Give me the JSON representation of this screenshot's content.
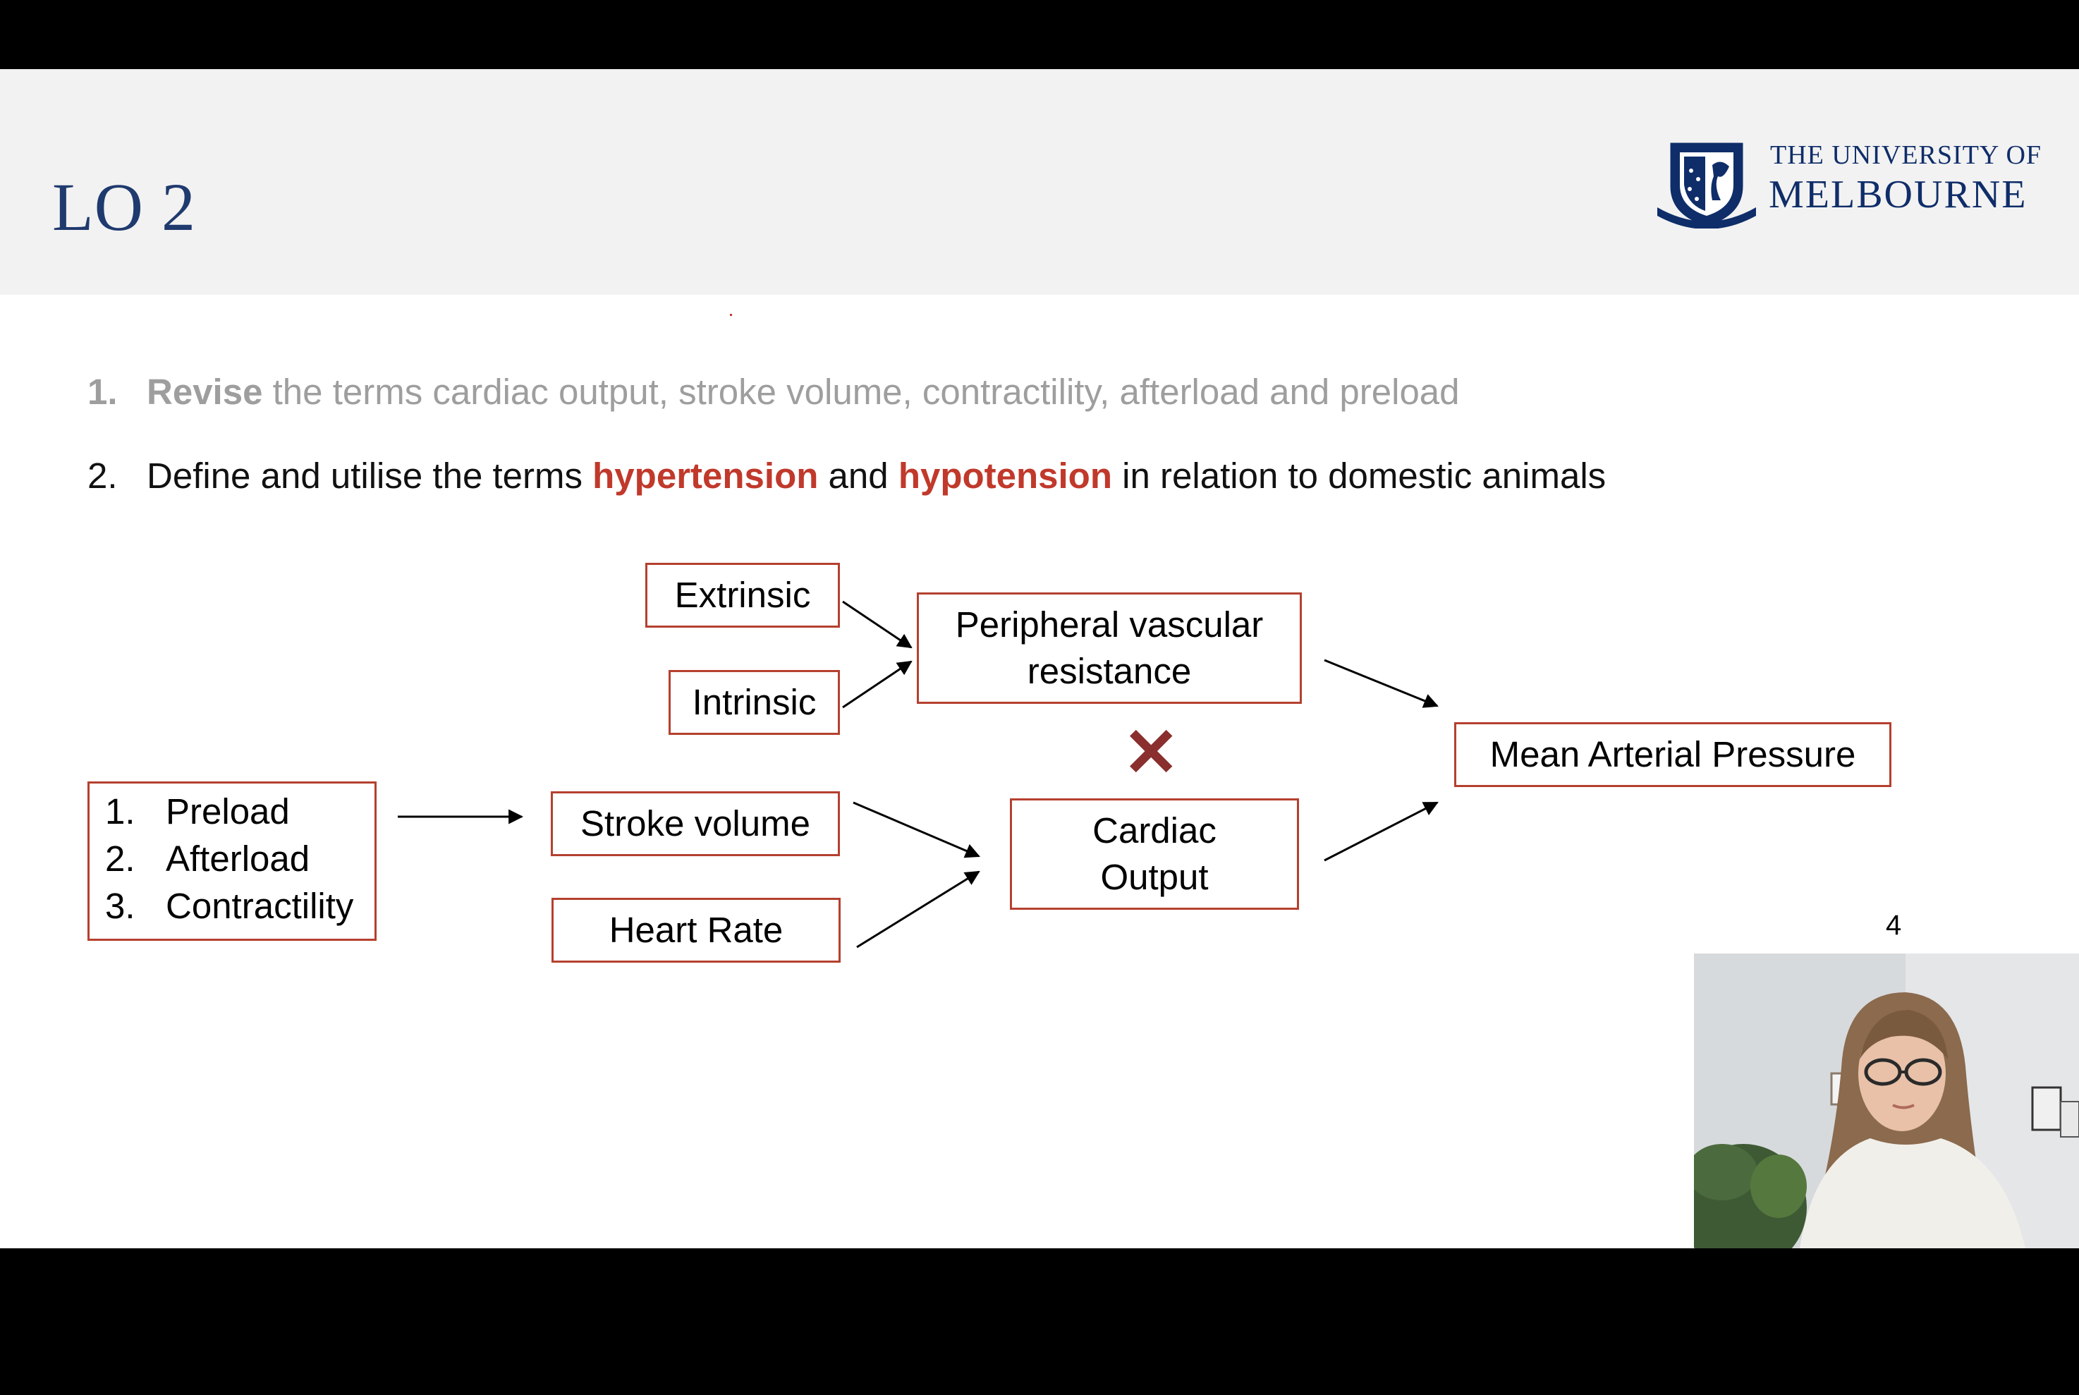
{
  "slide": {
    "title": "LO 2",
    "logo": {
      "line1": "THE UNIVERSITY OF",
      "line2": "MELBOURNE"
    },
    "objectives": [
      {
        "num": "1.",
        "bold": "Revise",
        "text": " the terms cardiac output, stroke volume, contractility, afterload and preload"
      },
      {
        "num": "2.",
        "pre": "Define and utilise the terms ",
        "hl1": "hypertension",
        "mid": " and ",
        "hl2": "hypotension",
        "post": " in relation to domestic animals"
      }
    ],
    "diagram": {
      "extrinsic": "Extrinsic",
      "intrinsic": "Intrinsic",
      "pvr_line1": "Peripheral vascular",
      "pvr_line2": "resistance",
      "times_symbol": "✕",
      "map": "Mean Arterial Pressure",
      "list": [
        {
          "num": "1.",
          "label": "Preload"
        },
        {
          "num": "2.",
          "label": "Afterload"
        },
        {
          "num": "3.",
          "label": "Contractility"
        }
      ],
      "stroke_volume": "Stroke volume",
      "heart_rate": "Heart Rate",
      "co_line1": "Cardiac",
      "co_line2": "Output"
    },
    "page_number": "4"
  },
  "colors": {
    "box_border": "#b5402f",
    "highlight": "#c0392b",
    "title": "#1f3a6e",
    "header_bg": "#f2f2f2"
  }
}
